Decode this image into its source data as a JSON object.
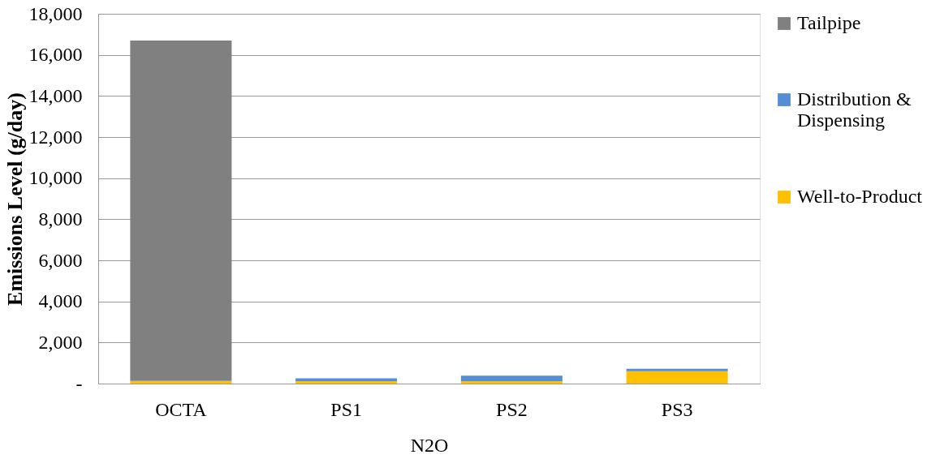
{
  "chart_data": {
    "type": "bar",
    "stacked": true,
    "categories": [
      "OCTA",
      "PS1",
      "PS2",
      "PS3"
    ],
    "xlabel": "N2O",
    "ylabel": "Emissions Level (g/day)",
    "series": [
      {
        "name": "Well-to-Product",
        "color": "#ffc000",
        "values": [
          120,
          120,
          120,
          600
        ]
      },
      {
        "name": "Distribution & Dispensing",
        "color": "#558ed5",
        "values": [
          20,
          140,
          260,
          120
        ]
      },
      {
        "name": "Tailpipe",
        "color": "#808080",
        "values": [
          16560,
          0,
          0,
          0
        ]
      }
    ],
    "ylim": [
      0,
      18000
    ],
    "yticks": [
      {
        "value": 0,
        "label": "-"
      },
      {
        "value": 2000,
        "label": "2,000"
      },
      {
        "value": 4000,
        "label": "4,000"
      },
      {
        "value": 6000,
        "label": "6,000"
      },
      {
        "value": 8000,
        "label": "8,000"
      },
      {
        "value": 10000,
        "label": "10,000"
      },
      {
        "value": 12000,
        "label": "12,000"
      },
      {
        "value": 14000,
        "label": "14,000"
      },
      {
        "value": 16000,
        "label": "16,000"
      },
      {
        "value": 18000,
        "label": "18,000"
      }
    ],
    "grid": "y",
    "legend": "right"
  }
}
